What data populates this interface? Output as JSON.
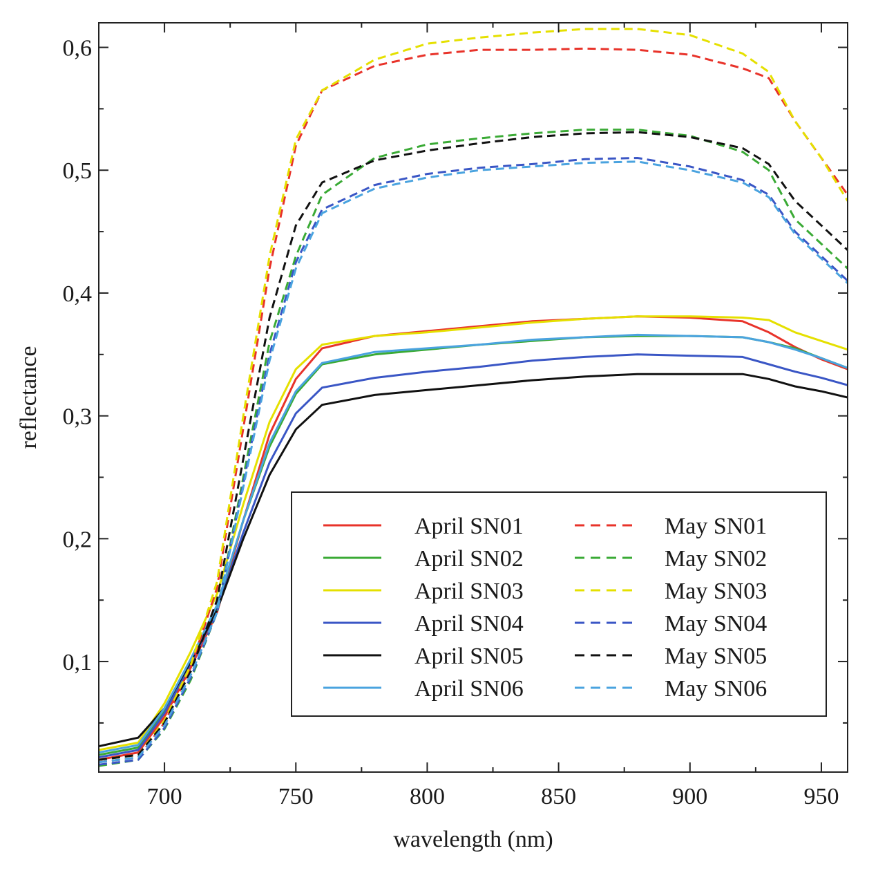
{
  "chart_data": {
    "type": "line",
    "title": "",
    "xlabel": "wavelength (nm)",
    "ylabel": "reflectance",
    "xlim": [
      675,
      960
    ],
    "ylim": [
      0.01,
      0.62
    ],
    "x_ticks": [
      700,
      750,
      800,
      850,
      900,
      950
    ],
    "y_ticks": [
      0.1,
      0.2,
      0.3,
      0.4,
      0.5,
      0.6
    ],
    "x_tick_labels": [
      "700",
      "750",
      "800",
      "850",
      "900",
      "950"
    ],
    "y_tick_labels": [
      "0,1",
      "0,2",
      "0,3",
      "0,4",
      "0,5",
      "0,6"
    ],
    "grid": false,
    "legend_position": "bottom-right",
    "x": [
      675,
      690,
      700,
      710,
      720,
      730,
      740,
      750,
      760,
      780,
      800,
      820,
      840,
      860,
      880,
      900,
      920,
      930,
      940,
      950,
      960
    ],
    "series": [
      {
        "name": "April SN01",
        "color": "#e8332a",
        "dash": "solid",
        "values": [
          0.02,
          0.026,
          0.055,
          0.095,
          0.14,
          0.215,
          0.285,
          0.33,
          0.355,
          0.365,
          0.369,
          0.373,
          0.377,
          0.379,
          0.381,
          0.38,
          0.377,
          0.368,
          0.356,
          0.346,
          0.338
        ]
      },
      {
        "name": "April SN02",
        "color": "#3aaa35",
        "dash": "solid",
        "values": [
          0.024,
          0.03,
          0.06,
          0.1,
          0.145,
          0.215,
          0.275,
          0.318,
          0.342,
          0.35,
          0.354,
          0.358,
          0.361,
          0.364,
          0.365,
          0.365,
          0.364,
          0.36,
          0.355,
          0.347,
          0.339
        ]
      },
      {
        "name": "April SN03",
        "color": "#e5e000",
        "dash": "solid",
        "values": [
          0.028,
          0.034,
          0.066,
          0.108,
          0.155,
          0.228,
          0.295,
          0.338,
          0.358,
          0.365,
          0.368,
          0.372,
          0.376,
          0.379,
          0.381,
          0.381,
          0.38,
          0.378,
          0.368,
          0.361,
          0.354
        ]
      },
      {
        "name": "April SN04",
        "color": "#3a56c5",
        "dash": "solid",
        "values": [
          0.022,
          0.028,
          0.058,
          0.098,
          0.142,
          0.205,
          0.262,
          0.302,
          0.323,
          0.331,
          0.336,
          0.34,
          0.345,
          0.348,
          0.35,
          0.349,
          0.348,
          0.342,
          0.336,
          0.331,
          0.325
        ]
      },
      {
        "name": "April SN05",
        "color": "#111111",
        "dash": "solid",
        "values": [
          0.031,
          0.038,
          0.062,
          0.1,
          0.142,
          0.2,
          0.252,
          0.289,
          0.309,
          0.317,
          0.321,
          0.325,
          0.329,
          0.332,
          0.334,
          0.334,
          0.334,
          0.33,
          0.324,
          0.32,
          0.315
        ]
      },
      {
        "name": "April SN06",
        "color": "#4aa3df",
        "dash": "solid",
        "values": [
          0.026,
          0.032,
          0.062,
          0.102,
          0.146,
          0.215,
          0.278,
          0.32,
          0.343,
          0.352,
          0.355,
          0.358,
          0.362,
          0.364,
          0.366,
          0.365,
          0.364,
          0.36,
          0.354,
          0.347,
          0.339
        ]
      },
      {
        "name": "May SN01",
        "color": "#e8332a",
        "dash": "dashed",
        "values": [
          0.018,
          0.022,
          0.05,
          0.095,
          0.16,
          0.29,
          0.42,
          0.52,
          0.565,
          0.585,
          0.594,
          0.598,
          0.598,
          0.599,
          0.598,
          0.594,
          0.583,
          0.575,
          0.54,
          0.51,
          0.48
        ]
      },
      {
        "name": "May SN02",
        "color": "#3aaa35",
        "dash": "dashed",
        "values": [
          0.015,
          0.02,
          0.045,
          0.085,
          0.14,
          0.25,
          0.36,
          0.43,
          0.48,
          0.51,
          0.521,
          0.526,
          0.53,
          0.533,
          0.533,
          0.528,
          0.515,
          0.5,
          0.46,
          0.44,
          0.42
        ]
      },
      {
        "name": "May SN03",
        "color": "#e5e000",
        "dash": "dashed",
        "values": [
          0.02,
          0.024,
          0.052,
          0.097,
          0.165,
          0.3,
          0.43,
          0.525,
          0.565,
          0.59,
          0.603,
          0.608,
          0.612,
          0.615,
          0.615,
          0.61,
          0.595,
          0.58,
          0.54,
          0.51,
          0.475
        ]
      },
      {
        "name": "May SN04",
        "color": "#3a56c5",
        "dash": "dashed",
        "values": [
          0.016,
          0.02,
          0.046,
          0.087,
          0.14,
          0.245,
          0.35,
          0.425,
          0.468,
          0.488,
          0.497,
          0.502,
          0.505,
          0.509,
          0.51,
          0.503,
          0.492,
          0.48,
          0.45,
          0.43,
          0.41
        ]
      },
      {
        "name": "May SN05",
        "color": "#111111",
        "dash": "dashed",
        "values": [
          0.02,
          0.024,
          0.05,
          0.092,
          0.15,
          0.265,
          0.38,
          0.455,
          0.49,
          0.508,
          0.516,
          0.522,
          0.527,
          0.53,
          0.531,
          0.527,
          0.518,
          0.505,
          0.475,
          0.455,
          0.435
        ]
      },
      {
        "name": "May SN06",
        "color": "#4aa3df",
        "dash": "dashed",
        "values": [
          0.018,
          0.022,
          0.048,
          0.089,
          0.14,
          0.242,
          0.345,
          0.42,
          0.465,
          0.485,
          0.494,
          0.5,
          0.503,
          0.506,
          0.507,
          0.5,
          0.49,
          0.478,
          0.448,
          0.428,
          0.408
        ]
      }
    ]
  }
}
